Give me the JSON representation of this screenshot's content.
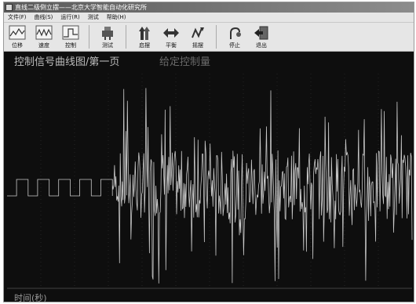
{
  "window": {
    "title": "直线二级倒立摆——北京大学智能自动化研究所"
  },
  "menu": {
    "items": [
      "文件(F)",
      "曲线(S)",
      "运行(R)",
      "测试",
      "帮助(H)"
    ]
  },
  "toolbar": {
    "buttons": [
      {
        "label": "位移",
        "icon": "displacement-curve-icon"
      },
      {
        "label": "速度",
        "icon": "velocity-curve-icon"
      },
      {
        "label": "控制",
        "icon": "control-curve-icon"
      },
      {
        "label": "测试",
        "icon": "test-icon"
      },
      {
        "label": "启摆",
        "icon": "swing-up-icon"
      },
      {
        "label": "平衡",
        "icon": "balance-icon"
      },
      {
        "label": "摇摆",
        "icon": "swing-icon"
      },
      {
        "label": "停止",
        "icon": "stop-icon"
      },
      {
        "label": "退出",
        "icon": "exit-icon"
      }
    ]
  },
  "plot": {
    "title": "控制信号曲线图/第一页",
    "subtitle": "给定控制量",
    "x_label": "时间(秒)",
    "colors": {
      "background": "#0e0e0e",
      "trace": "#c8c8c8",
      "grid": "#3a3a3a"
    }
  },
  "chart_data": {
    "type": "line",
    "title": "控制信号曲线图/第一页",
    "xlabel": "时间(秒)",
    "ylabel": "",
    "grid": true,
    "series": [
      {
        "name": "给定控制量",
        "segments": [
          {
            "kind": "square-wave",
            "x_range": [
              0,
              0.26
            ],
            "periods": 5,
            "levels": [
              -0.1,
              0.05
            ]
          },
          {
            "kind": "oscillation",
            "x_range": [
              0.26,
              1.0
            ],
            "amplitude_approx": 0.9,
            "baseline": 0.0
          }
        ]
      }
    ]
  }
}
